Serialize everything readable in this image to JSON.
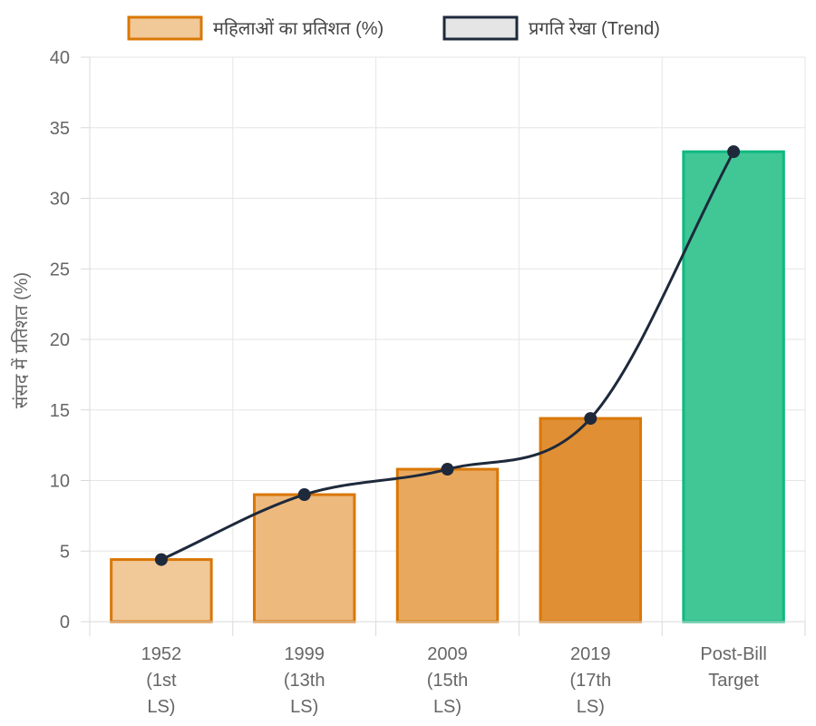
{
  "chart_data": {
    "type": "bar",
    "categories": [
      [
        "1952",
        "(1st",
        "LS)"
      ],
      [
        "1999",
        "(13th",
        "LS)"
      ],
      [
        "2009",
        "(15th",
        "LS)"
      ],
      [
        "2019",
        "(17th",
        "LS)"
      ],
      [
        "Post-Bill",
        "Target"
      ]
    ],
    "series": [
      {
        "name": "महिलाओं का प्रतिशत (%)",
        "kind": "bar",
        "values": [
          4.4,
          9.0,
          10.8,
          14.4,
          33.3
        ],
        "fill_colors": [
          "#F1C898",
          "#EDB97D",
          "#E8A95E",
          "#E08F34",
          "#40C795"
        ],
        "border_colors": [
          "#D97706",
          "#D97706",
          "#D97706",
          "#D97706",
          "#10B981"
        ],
        "legend_fill": "#F1C898",
        "legend_border": "#D97706"
      },
      {
        "name": "प्रगति रेखा (Trend)",
        "kind": "line",
        "values": [
          4.4,
          9.0,
          10.8,
          14.4,
          33.3
        ],
        "color": "#1E293B",
        "legend_fill": "#E5E5E5",
        "legend_border": "#1E293B"
      }
    ],
    "ylabel": "संसद में प्रतिशत (%)",
    "xlabel": "",
    "ylim": [
      0,
      40
    ],
    "yticks": [
      0,
      5,
      10,
      15,
      20,
      25,
      30,
      35,
      40
    ],
    "grid": true,
    "legend_position": "top-center"
  }
}
